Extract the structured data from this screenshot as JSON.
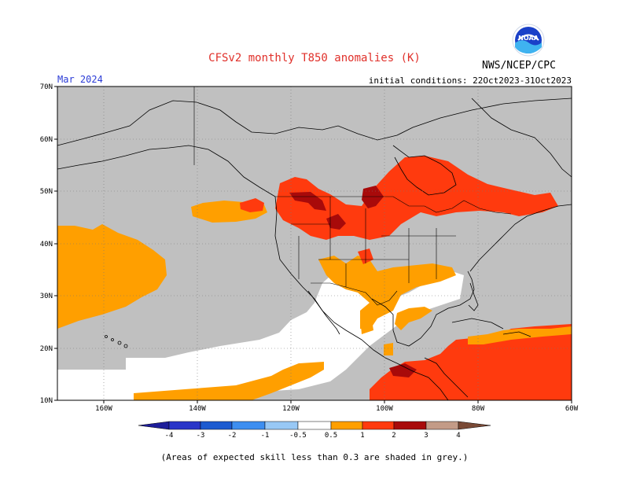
{
  "title": "CFSv2 monthly T850 anomalies (K)",
  "valid_month": "Mar 2024",
  "agency": "NWS/NCEP/CPC",
  "logo_text": "NOAA",
  "initial_conditions": "initial conditions: 22Oct2023-31Oct2023",
  "footnote": "(Areas of expected skill less than 0.3 are shaded in grey.)",
  "colors": {
    "title": "#e0302a",
    "valid_month": "#2a3bd6",
    "no_skill_grey": "#c0c0c0",
    "neutral_white": "#ffffff",
    "anom_0_5_to_1": "#ff9f00",
    "anom_1_to_2": "#ff3a0e",
    "anom_2_to_3": "#a80a0a",
    "anom_3_to_4": "#c39b87",
    "anom_gt_4": "#7a4a36",
    "anom_m0_5_to_m1": "#98c8f5",
    "anom_m1_to_m2": "#3d8ef0",
    "anom_m2_to_m3": "#1c5bd0",
    "anom_m3_to_m4": "#2a35c8",
    "anom_lt_m4": "#1e1e9a"
  },
  "map": {
    "lon_ticks": [
      "160W",
      "140W",
      "120W",
      "100W",
      "80W",
      "60W"
    ],
    "lat_ticks": [
      "70N",
      "60N",
      "50N",
      "40N",
      "30N",
      "20N",
      "10N"
    ],
    "lon_range": [
      -170,
      -60
    ],
    "lat_range": [
      10,
      70
    ]
  },
  "colorbar": {
    "labels": [
      "-4",
      "-3",
      "-2",
      "-1",
      "-0.5",
      "0.5",
      "1",
      "2",
      "3",
      "4"
    ]
  }
}
